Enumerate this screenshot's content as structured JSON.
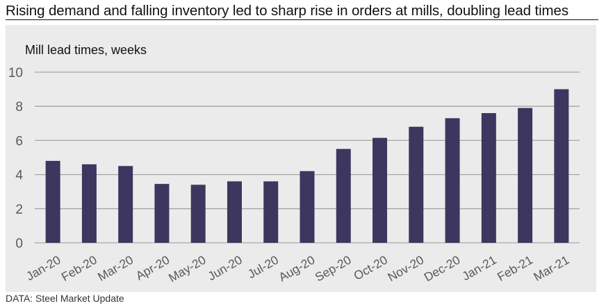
{
  "header": {
    "title": "Rising demand and falling inventory led to sharp rise in orders at mills, doubling lead times"
  },
  "footer": {
    "source": "DATA: Steel Market Update"
  },
  "colors": {
    "bar": "#3d365e",
    "panel_background": "#ebebeb",
    "gridline": "#a6a6a6",
    "tick_label": "#595959",
    "title": "#111111"
  },
  "chart_data": {
    "type": "bar",
    "title": "Rising demand and falling inventory led to sharp rise in orders at mills, doubling lead times",
    "subtitle": "Mill lead times, weeks",
    "xlabel": "",
    "ylabel": "Mill lead times, weeks",
    "categories": [
      "Jan-20",
      "Feb-20",
      "Mar-20",
      "Apr-20",
      "May-20",
      "Jun-20",
      "Jul-20",
      "Aug-20",
      "Sep-20",
      "Oct-20",
      "Nov-20",
      "Dec-20",
      "Jan-21",
      "Feb-21",
      "Mar-21"
    ],
    "values": [
      4.8,
      4.6,
      4.5,
      3.45,
      3.4,
      3.6,
      3.6,
      4.2,
      5.5,
      6.15,
      6.8,
      7.3,
      7.6,
      7.9,
      9.0
    ],
    "ylim": [
      0,
      10
    ],
    "yticks": [
      0,
      2,
      4,
      6,
      8,
      10
    ],
    "grid": true,
    "legend": "none",
    "source": "DATA: Steel Market Update"
  }
}
